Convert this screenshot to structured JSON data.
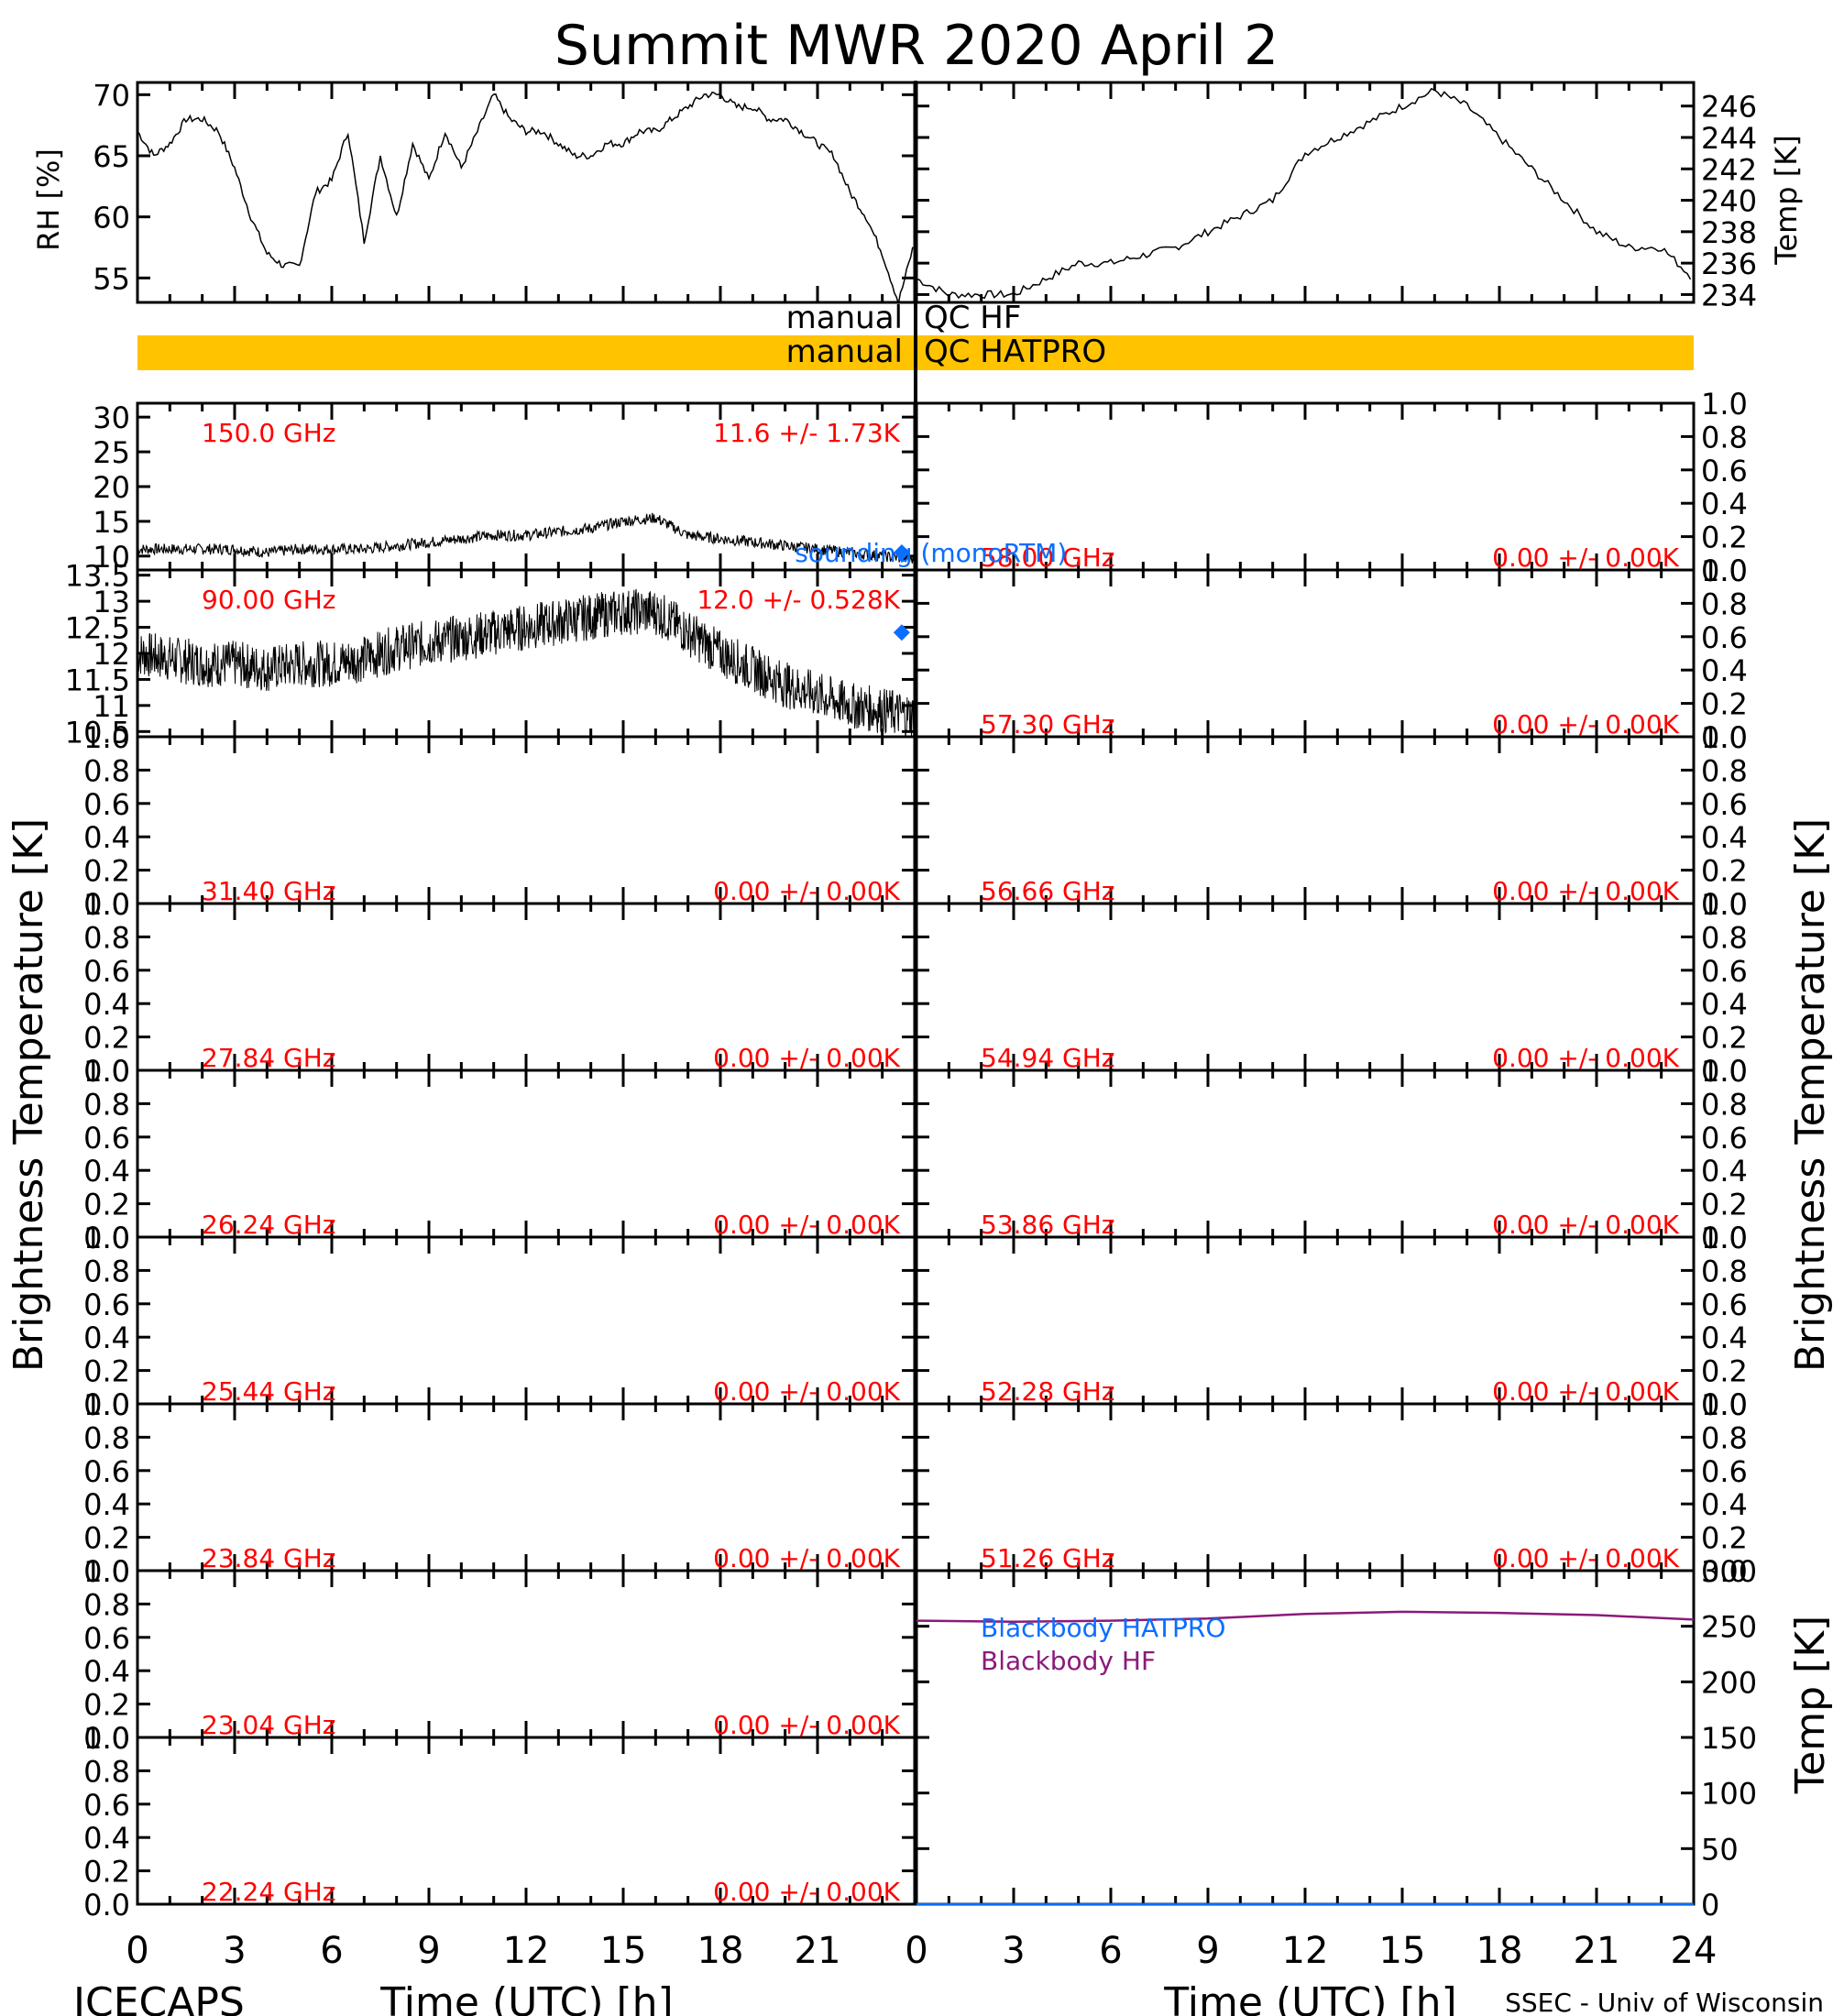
{
  "title": "Summit MWR 2020 April  2",
  "footer_left": "ICECAPS",
  "footer_right": "SSEC - Univ of Wisconsin",
  "colors": {
    "red": "#ff0000",
    "blue": "#0a6eff",
    "purple": "#8b1a7a",
    "qc": "#ffc300"
  },
  "qc": {
    "hf_left": "manual",
    "hf_right": "QC HF",
    "hatpro_left": "manual",
    "hatpro_right": "QC HATPRO"
  },
  "axes_labels": {
    "rh": "RH [%]",
    "temp": "Temp [K]",
    "tb_left": "Brightness Temperature [K]",
    "tb_right": "Brightness Temperature [K]",
    "bb_temp": "Temp [K]",
    "xlabel_left": "Time (UTC) [h]",
    "xlabel_right": "Time (UTC) [h]"
  },
  "x_ticks": [
    "0",
    "3",
    "6",
    "9",
    "12",
    "15",
    "18",
    "21",
    "0",
    "3",
    "6",
    "9",
    "12",
    "15",
    "18",
    "21",
    "24"
  ],
  "chart_data": [
    {
      "type": "line",
      "id": "rh",
      "xlabel": "",
      "ylabel": "RH [%]",
      "xlim": [
        0,
        24
      ],
      "ylim": [
        53,
        71
      ],
      "yticks": [
        55,
        60,
        65,
        70
      ],
      "x": [
        0,
        0.5,
        1,
        1.5,
        2,
        2.5,
        3,
        3.5,
        4,
        4.5,
        5,
        5.5,
        6,
        6.5,
        7,
        7.5,
        8,
        8.5,
        9,
        9.5,
        10,
        10.5,
        11,
        11.5,
        12,
        12.5,
        13,
        13.5,
        14,
        14.5,
        15,
        15.5,
        16,
        16.5,
        17,
        17.5,
        18,
        18.5,
        19,
        19.5,
        20,
        20.5,
        21,
        21.5,
        22,
        22.5,
        23,
        23.5,
        24
      ],
      "series": [
        {
          "values": [
            67,
            65,
            66,
            68,
            68,
            67,
            64,
            60,
            57,
            56,
            56,
            62,
            63,
            67,
            58,
            65,
            60,
            66,
            63,
            67,
            64,
            67,
            70,
            68,
            67,
            67,
            66,
            65,
            65,
            66,
            66,
            67,
            67,
            68,
            69,
            70,
            70,
            69,
            69,
            68,
            68,
            67,
            66,
            65,
            62,
            60,
            57,
            53,
            58
          ]
        }
      ]
    },
    {
      "type": "line",
      "id": "temp",
      "xlabel": "",
      "ylabel": "Temp [K]",
      "xlim": [
        0,
        24
      ],
      "ylim": [
        233.5,
        247.5
      ],
      "yticks": [
        234,
        236,
        238,
        240,
        242,
        244,
        246
      ],
      "x": [
        0,
        1,
        2,
        3,
        4,
        5,
        6,
        7,
        8,
        9,
        10,
        11,
        12,
        13,
        14,
        15,
        16,
        17,
        18,
        19,
        20,
        21,
        22,
        23,
        24
      ],
      "series": [
        {
          "values": [
            235,
            234,
            234,
            234,
            235,
            236,
            236,
            236.5,
            237,
            238,
            239,
            240,
            243,
            244,
            245,
            246,
            247,
            246,
            244,
            242,
            240,
            238,
            237,
            237,
            235
          ]
        }
      ]
    },
    {
      "type": "scatter",
      "id": "tb150",
      "ylim": [
        8,
        32
      ],
      "yticks": [
        10,
        15,
        20,
        25,
        30
      ],
      "label": "150.0 GHz",
      "stat": "11.6 +/-  1.73K",
      "x": [
        0,
        1,
        2,
        3,
        4,
        5,
        6,
        7,
        8,
        9,
        10,
        11,
        12,
        13,
        14,
        15,
        16,
        17,
        18,
        19,
        20,
        21,
        22,
        23,
        24
      ],
      "series": [
        {
          "values": [
            11,
            11,
            11,
            11,
            10.5,
            11,
            11,
            11,
            11.5,
            12,
            12.5,
            13,
            13,
            13.5,
            14,
            15,
            15.5,
            13,
            12.5,
            12,
            11.5,
            11,
            10.5,
            10,
            9.5
          ]
        }
      ],
      "marker": {
        "x": 23.6,
        "y": 10.5
      },
      "marker_label": "sounding (monoRTM)"
    },
    {
      "type": "scatter",
      "id": "tb90",
      "ylim": [
        10.4,
        13.6
      ],
      "yticks": [
        10.5,
        11.0,
        11.5,
        12.0,
        12.5,
        13.0,
        13.5
      ],
      "label": "90.00 GHz",
      "stat": "12.0 +/- 0.528K",
      "x": [
        0,
        1,
        2,
        3,
        4,
        5,
        6,
        7,
        8,
        9,
        10,
        11,
        12,
        13,
        14,
        15,
        16,
        17,
        18,
        19,
        20,
        21,
        22,
        23,
        24
      ],
      "series": [
        {
          "values": [
            12.0,
            11.9,
            11.8,
            11.8,
            11.7,
            11.8,
            11.8,
            11.9,
            12.1,
            12.2,
            12.3,
            12.4,
            12.5,
            12.6,
            12.7,
            12.8,
            12.8,
            12.4,
            12.0,
            11.7,
            11.4,
            11.2,
            11.0,
            10.9,
            10.8
          ]
        }
      ],
      "marker": {
        "x": 23.6,
        "y": 12.4
      }
    },
    {
      "type": "line",
      "id": "tb58",
      "ylim": [
        0,
        1
      ],
      "label": "58.00 GHz",
      "stat": "0.00 +/-  0.00K"
    },
    {
      "type": "line",
      "id": "tb5730",
      "ylim": [
        0,
        1
      ],
      "label": "57.30 GHz",
      "stat": "0.00 +/-  0.00K"
    },
    {
      "type": "line",
      "id": "tb3140",
      "ylim": [
        0,
        1
      ],
      "label": "31.40 GHz",
      "stat": "0.00 +/-  0.00K"
    },
    {
      "type": "line",
      "id": "tb5666",
      "ylim": [
        0,
        1
      ],
      "label": "56.66 GHz",
      "stat": "0.00 +/-  0.00K"
    },
    {
      "type": "line",
      "id": "tb2784",
      "ylim": [
        0,
        1
      ],
      "label": "27.84 GHz",
      "stat": "0.00 +/-  0.00K"
    },
    {
      "type": "line",
      "id": "tb5494",
      "ylim": [
        0,
        1
      ],
      "label": "54.94 GHz",
      "stat": "0.00 +/-  0.00K"
    },
    {
      "type": "line",
      "id": "tb2624",
      "ylim": [
        0,
        1
      ],
      "label": "26.24 GHz",
      "stat": "0.00 +/-  0.00K"
    },
    {
      "type": "line",
      "id": "tb5386",
      "ylim": [
        0,
        1
      ],
      "label": "53.86 GHz",
      "stat": "0.00 +/-  0.00K"
    },
    {
      "type": "line",
      "id": "tb2544",
      "ylim": [
        0,
        1
      ],
      "label": "25.44 GHz",
      "stat": "0.00 +/-  0.00K"
    },
    {
      "type": "line",
      "id": "tb5228",
      "ylim": [
        0,
        1
      ],
      "label": "52.28 GHz",
      "stat": "0.00 +/-  0.00K"
    },
    {
      "type": "line",
      "id": "tb2384",
      "ylim": [
        0,
        1
      ],
      "label": "23.84 GHz",
      "stat": "0.00 +/-  0.00K"
    },
    {
      "type": "line",
      "id": "tb5126",
      "ylim": [
        0,
        1
      ],
      "label": "51.26 GHz",
      "stat": "0.00 +/-  0.00K"
    },
    {
      "type": "line",
      "id": "tb2304",
      "ylim": [
        0,
        1
      ],
      "label": "23.04 GHz",
      "stat": "0.00 +/-  0.00K"
    },
    {
      "type": "line",
      "id": "tb2224",
      "ylim": [
        0,
        1
      ],
      "label": "22.24 GHz",
      "stat": "0.00 +/-  0.00K"
    },
    {
      "type": "line",
      "id": "blackbody",
      "xlim": [
        0,
        24
      ],
      "ylim": [
        0,
        300
      ],
      "yticks": [
        0,
        50,
        100,
        150,
        200,
        250,
        300
      ],
      "x": [
        0,
        3,
        6,
        9,
        12,
        15,
        18,
        21,
        24
      ],
      "series": [
        {
          "name": "Blackbody HATPRO",
          "values": [
            0,
            0,
            0,
            0,
            0,
            0,
            0,
            0,
            0
          ]
        },
        {
          "name": "Blackbody HF",
          "values": [
            255,
            254,
            255,
            257,
            261,
            263,
            262,
            260,
            256
          ]
        }
      ]
    }
  ],
  "zero_tick_labels": [
    "0.0",
    "0.2",
    "0.4",
    "0.6",
    "0.8",
    "1.0"
  ]
}
